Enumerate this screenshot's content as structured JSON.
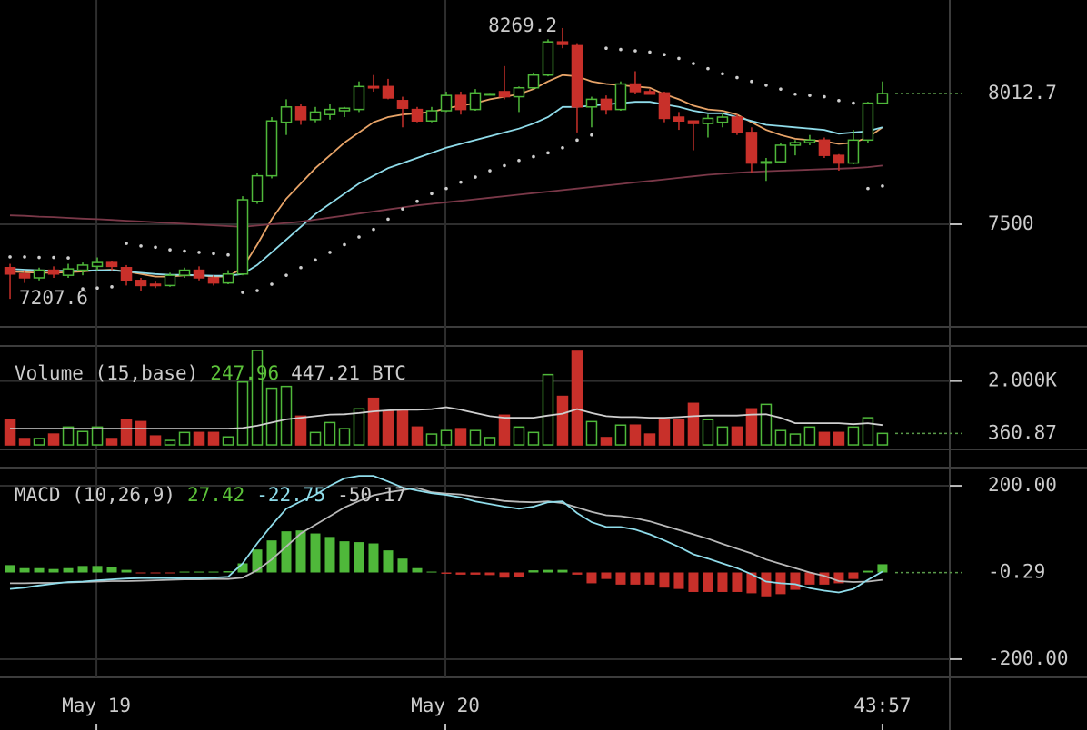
{
  "chart_data": [
    {
      "type": "candlestick",
      "open": [
        7330,
        7305,
        7290,
        7320,
        7300,
        7320,
        7335,
        7350,
        7330,
        7280,
        7265,
        7260,
        7300,
        7320,
        7290,
        7270,
        7305,
        7590,
        7690,
        7900,
        7960,
        7910,
        7930,
        7945,
        7950,
        8040,
        8040,
        7985,
        7950,
        7905,
        7945,
        8005,
        7950,
        8010,
        8020,
        8000,
        8035,
        8085,
        8215,
        8200,
        7960,
        7990,
        7950,
        8050,
        8020,
        8015,
        7920,
        7905,
        7895,
        7900,
        7920,
        7860,
        7740,
        7745,
        7810,
        7820,
        7830,
        7770,
        7740,
        7830,
        7975
      ],
      "high": [
        7345,
        7320,
        7330,
        7335,
        7345,
        7350,
        7370,
        7355,
        7340,
        7290,
        7275,
        7310,
        7330,
        7335,
        7300,
        7320,
        7610,
        7700,
        7920,
        7990,
        7970,
        7960,
        7970,
        7960,
        8060,
        8085,
        8070,
        8000,
        7960,
        7960,
        8020,
        8020,
        8030,
        8015,
        8120,
        8040,
        8095,
        8225,
        8269.2,
        8210,
        8000,
        8005,
        8060,
        8100,
        8030,
        8020,
        7940,
        7905,
        7930,
        7935,
        7930,
        7880,
        7760,
        7820,
        7830,
        7850,
        7840,
        7775,
        7870,
        7980,
        8060
      ],
      "low": [
        7207.6,
        7270,
        7280,
        7290,
        7290,
        7300,
        7320,
        7320,
        7260,
        7240,
        7250,
        7255,
        7290,
        7280,
        7260,
        7265,
        7300,
        7580,
        7680,
        7850,
        7890,
        7900,
        7910,
        7920,
        7940,
        8020,
        7990,
        7880,
        7900,
        7900,
        7940,
        7930,
        7945,
        8005,
        7990,
        7940,
        8030,
        8080,
        8190,
        7860,
        7880,
        7930,
        7945,
        8010,
        8010,
        7900,
        7870,
        7790,
        7840,
        7880,
        7850,
        7700,
        7670,
        7740,
        7770,
        7810,
        7760,
        7710,
        7735,
        7820,
        7970
      ],
      "close": [
        7305,
        7290,
        7320,
        7305,
        7325,
        7340,
        7350,
        7335,
        7280,
        7260,
        7260,
        7300,
        7320,
        7290,
        7270,
        7305,
        7596,
        7690,
        7905,
        7960,
        7910,
        7940,
        7950,
        7955,
        8040,
        8035,
        7995,
        7955,
        7905,
        7945,
        8005,
        7950,
        8015,
        8012,
        8000,
        8035,
        8085,
        8215,
        8205,
        7960,
        7990,
        7950,
        8050,
        8020,
        8010,
        7915,
        7905,
        7895,
        7915,
        7920,
        7860,
        7740,
        7745,
        7810,
        7820,
        7830,
        7770,
        7740,
        7830,
        7975,
        8012.7
      ],
      "up_color": "#4fb83a",
      "down_color": "#c8302a",
      "overlays": [
        {
          "color": "#e8a468",
          "values": [
            7315,
            7312,
            7310,
            7310,
            7312,
            7315,
            7320,
            7322,
            7315,
            7305,
            7295,
            7295,
            7300,
            7300,
            7295,
            7295,
            7330,
            7420,
            7520,
            7600,
            7660,
            7720,
            7770,
            7820,
            7860,
            7900,
            7920,
            7930,
            7935,
            7940,
            7955,
            7965,
            7975,
            7990,
            8000,
            8010,
            8030,
            8060,
            8085,
            8080,
            8060,
            8050,
            8045,
            8040,
            8035,
            8010,
            7990,
            7965,
            7950,
            7945,
            7930,
            7900,
            7870,
            7850,
            7835,
            7830,
            7825,
            7815,
            7820,
            7840,
            7880
          ]
        },
        {
          "color": "#8fdcea",
          "values": [
            7325,
            7322,
            7320,
            7318,
            7318,
            7318,
            7320,
            7320,
            7315,
            7310,
            7305,
            7302,
            7302,
            7300,
            7298,
            7298,
            7305,
            7340,
            7390,
            7440,
            7490,
            7540,
            7580,
            7620,
            7660,
            7690,
            7720,
            7740,
            7760,
            7780,
            7800,
            7815,
            7830,
            7845,
            7860,
            7875,
            7895,
            7920,
            7960,
            7960,
            7965,
            7970,
            7975,
            7980,
            7980,
            7970,
            7960,
            7945,
            7935,
            7935,
            7920,
            7905,
            7890,
            7885,
            7880,
            7875,
            7870,
            7855,
            7860,
            7865,
            7880
          ]
        },
        {
          "color": "#7a3848",
          "values": [
            7535,
            7533,
            7530,
            7528,
            7525,
            7522,
            7520,
            7517,
            7514,
            7511,
            7508,
            7505,
            7502,
            7499,
            7496,
            7493,
            7490,
            7495,
            7500,
            7505,
            7510,
            7518,
            7526,
            7534,
            7542,
            7550,
            7558,
            7566,
            7574,
            7580,
            7586,
            7592,
            7598,
            7604,
            7610,
            7616,
            7622,
            7628,
            7634,
            7640,
            7646,
            7652,
            7658,
            7664,
            7670,
            7676,
            7682,
            7688,
            7694,
            7698,
            7702,
            7705,
            7708,
            7710,
            7712,
            7714,
            7716,
            7718,
            7720,
            7724,
            7730
          ]
        }
      ],
      "sar": {
        "color": "#cfcfcf",
        "values": [
          7372,
          7372,
          7370,
          7370,
          7368,
          7247,
          7250,
          7255,
          7425,
          7415,
          7410,
          7400,
          7395,
          7390,
          7385,
          7380,
          7233,
          7240,
          7265,
          7300,
          7330,
          7360,
          7390,
          7420,
          7450,
          7480,
          7520,
          7560,
          7590,
          7620,
          7640,
          7665,
          7685,
          7710,
          7730,
          7750,
          7765,
          7780,
          7800,
          7830,
          7850,
          8190,
          8185,
          8180,
          8175,
          8165,
          8150,
          8130,
          8110,
          8090,
          8075,
          8060,
          8045,
          8030,
          8010,
          8005,
          8000,
          7985,
          7975,
          7640,
          7650
        ]
      },
      "xlim": [
        -0.69,
        64.63
      ],
      "xticks": [
        {
          "value": 5.94,
          "label": "May 19"
        },
        {
          "value": 29.94,
          "label": "May 20"
        }
      ],
      "countdown": "43:57",
      "ylim": [
        7097.7,
        8379.4
      ],
      "yticks": [
        8012.7,
        7500
      ]
    },
    {
      "type": "bar",
      "title": "Volume (15,base)",
      "legend_values": [
        247.96,
        447.21
      ],
      "legend_colors": [
        "#5cc23a",
        "#cccccc"
      ],
      "unit": "BTC",
      "values": [
        790,
        200,
        200,
        340,
        560,
        420,
        560,
        200,
        790,
        730,
        280,
        140,
        390,
        390,
        390,
        250,
        1970,
        2958,
        1775,
        1830,
        900,
        390,
        700,
        510,
        1130,
        1460,
        1070,
        1070,
        560,
        340,
        450,
        510,
        450,
        230,
        930,
        560,
        390,
        2200,
        1520,
        2930,
        730,
        230,
        620,
        620,
        340,
        790,
        790,
        1300,
        790,
        560,
        560,
        1130,
        1270,
        450,
        340,
        560,
        390,
        390,
        560,
        850,
        360.87
      ],
      "ma": {
        "color": "#cfcfcf",
        "values": [
          510,
          510,
          510,
          510,
          510,
          510,
          510,
          510,
          510,
          510,
          510,
          510,
          510,
          510,
          510,
          510,
          530,
          600,
          700,
          800,
          850,
          900,
          950,
          960,
          1000,
          1050,
          1080,
          1100,
          1100,
          1120,
          1180,
          1100,
          1000,
          900,
          850,
          850,
          850,
          920,
          980,
          1120,
          1000,
          900,
          870,
          870,
          850,
          850,
          870,
          900,
          920,
          920,
          920,
          950,
          960,
          850,
          680,
          680,
          680,
          680,
          650,
          680,
          620
        ]
      },
      "ylim": [
        -141,
        3099
      ],
      "yticks": [
        {
          "value": 2000,
          "label": "2.000K"
        },
        360.87
      ]
    },
    {
      "type": "macd",
      "title": "MACD (10,26,9)",
      "legend_values": [
        27.42,
        -22.75,
        -50.17
      ],
      "legend_colors": [
        "#5cc23a",
        "#8fdcea",
        "#cccccc"
      ],
      "histogram": [
        17,
        10,
        10,
        8,
        10,
        15,
        15,
        12,
        6,
        -2,
        -2,
        -1,
        2,
        2,
        2,
        3,
        21,
        53,
        74,
        95,
        97,
        90,
        82,
        72,
        70,
        67,
        51,
        32,
        10,
        2,
        -3,
        -5,
        -5,
        -6,
        -12,
        -10,
        5,
        6,
        6,
        -5,
        -25,
        -15,
        -28,
        -28,
        -28,
        -35,
        -38,
        -45,
        -45,
        -45,
        -45,
        -48,
        -55,
        -50,
        -40,
        -28,
        -28,
        -25,
        -15,
        4,
        19
      ],
      "up_color": "#4fb83a",
      "down_color": "#c8302a",
      "macd": {
        "color": "#8fdcea",
        "values": [
          -38,
          -35,
          -30,
          -26,
          -22,
          -21,
          -18,
          -16,
          -14,
          -13,
          -13,
          -13,
          -13,
          -13,
          -12,
          -10,
          21,
          67,
          109,
          147,
          164,
          179,
          200,
          217,
          223,
          223,
          210,
          196,
          189,
          183,
          179,
          173,
          164,
          158,
          152,
          147,
          152,
          162,
          164,
          137,
          116,
          105,
          105,
          99,
          88,
          74,
          59,
          42,
          32,
          21,
          10,
          -4,
          -21,
          -25,
          -27,
          -36,
          -42,
          -46,
          -38,
          -17,
          2
        ]
      },
      "signal": {
        "color": "#b8b8b8",
        "values": [
          -25,
          -25,
          -24,
          -24,
          -23,
          -22,
          -21,
          -20,
          -20,
          -19,
          -18,
          -17,
          -16,
          -16,
          -15,
          -15,
          -12,
          5,
          30,
          60,
          90,
          110,
          130,
          150,
          165,
          178,
          185,
          190,
          195,
          185,
          182,
          180,
          175,
          170,
          165,
          163,
          162,
          164,
          160,
          150,
          140,
          132,
          130,
          125,
          118,
          108,
          98,
          88,
          78,
          66,
          55,
          44,
          30,
          20,
          10,
          0,
          -8,
          -20,
          -22,
          -21,
          -17
        ]
      },
      "ylim": [
        -242,
        242
      ],
      "yticks": [
        {
          "value": 200,
          "label": "200.00"
        },
        -0.29,
        {
          "value": -200,
          "label": "-200.00"
        }
      ]
    }
  ]
}
